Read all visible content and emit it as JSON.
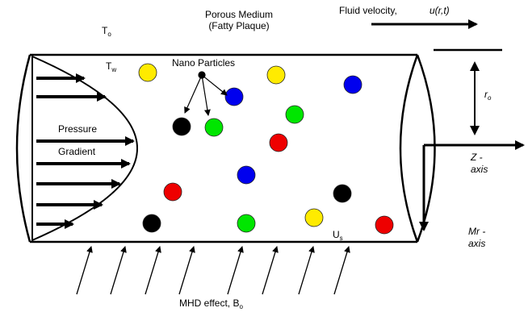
{
  "labels": {
    "porous_medium": "Porous Medium",
    "fatty_plaque": "(Fatty Plaque)",
    "fluid_velocity": "Fluid velocity,",
    "velocity_symbol": "u(r,t)",
    "outer_temperature": {
      "main": "T",
      "sub": "o"
    },
    "wall_temperature": {
      "main": "T",
      "sub": "w"
    },
    "nano_particles": "Nano Particles",
    "pressure": "Pressure",
    "gradient": "Gradient",
    "radius": {
      "main": "r",
      "sub": "o"
    },
    "z_axis": {
      "line1": "Z -",
      "line2": "axis"
    },
    "mr_axis": {
      "line1": "Mr -",
      "line2": "axis"
    },
    "slip_velocity": {
      "main": "U",
      "sub": "s"
    },
    "mhd_effect": {
      "main": "MHD effect, B",
      "sub": "o"
    }
  }
}
